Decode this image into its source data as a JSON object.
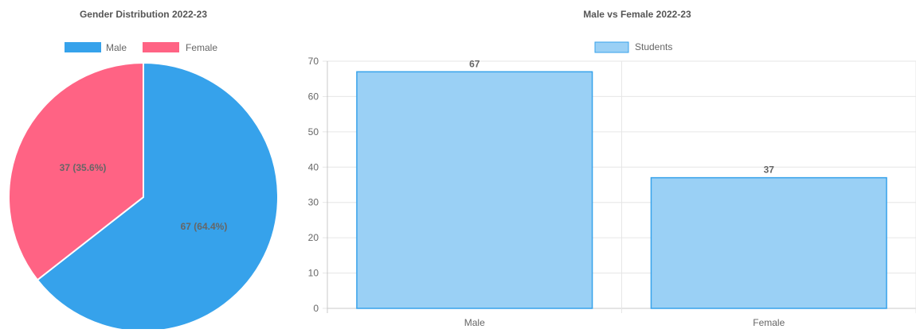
{
  "chart_data": [
    {
      "type": "pie",
      "title": "Gender Distribution 2022-23",
      "categories": [
        "Male",
        "Female"
      ],
      "values": [
        67,
        37
      ],
      "labels": [
        "67 (64.4%)",
        "37 (35.6%)"
      ],
      "colors": [
        "#36a2eb",
        "#ff6384"
      ],
      "legend": {
        "position": "top",
        "items": [
          "Male",
          "Female"
        ]
      }
    },
    {
      "type": "bar",
      "title": "Male vs Female 2022-23",
      "categories": [
        "Male",
        "Female"
      ],
      "series": [
        {
          "name": "Students",
          "values": [
            67,
            37
          ]
        }
      ],
      "data_labels": [
        "67",
        "37"
      ],
      "ylim": [
        0,
        70
      ],
      "yticks": [
        "0",
        "10",
        "20",
        "30",
        "40",
        "50",
        "60",
        "70"
      ],
      "grid": true,
      "legend": {
        "position": "top"
      },
      "bar_fill": "#9ad0f5",
      "bar_stroke": "#36a2eb"
    }
  ]
}
